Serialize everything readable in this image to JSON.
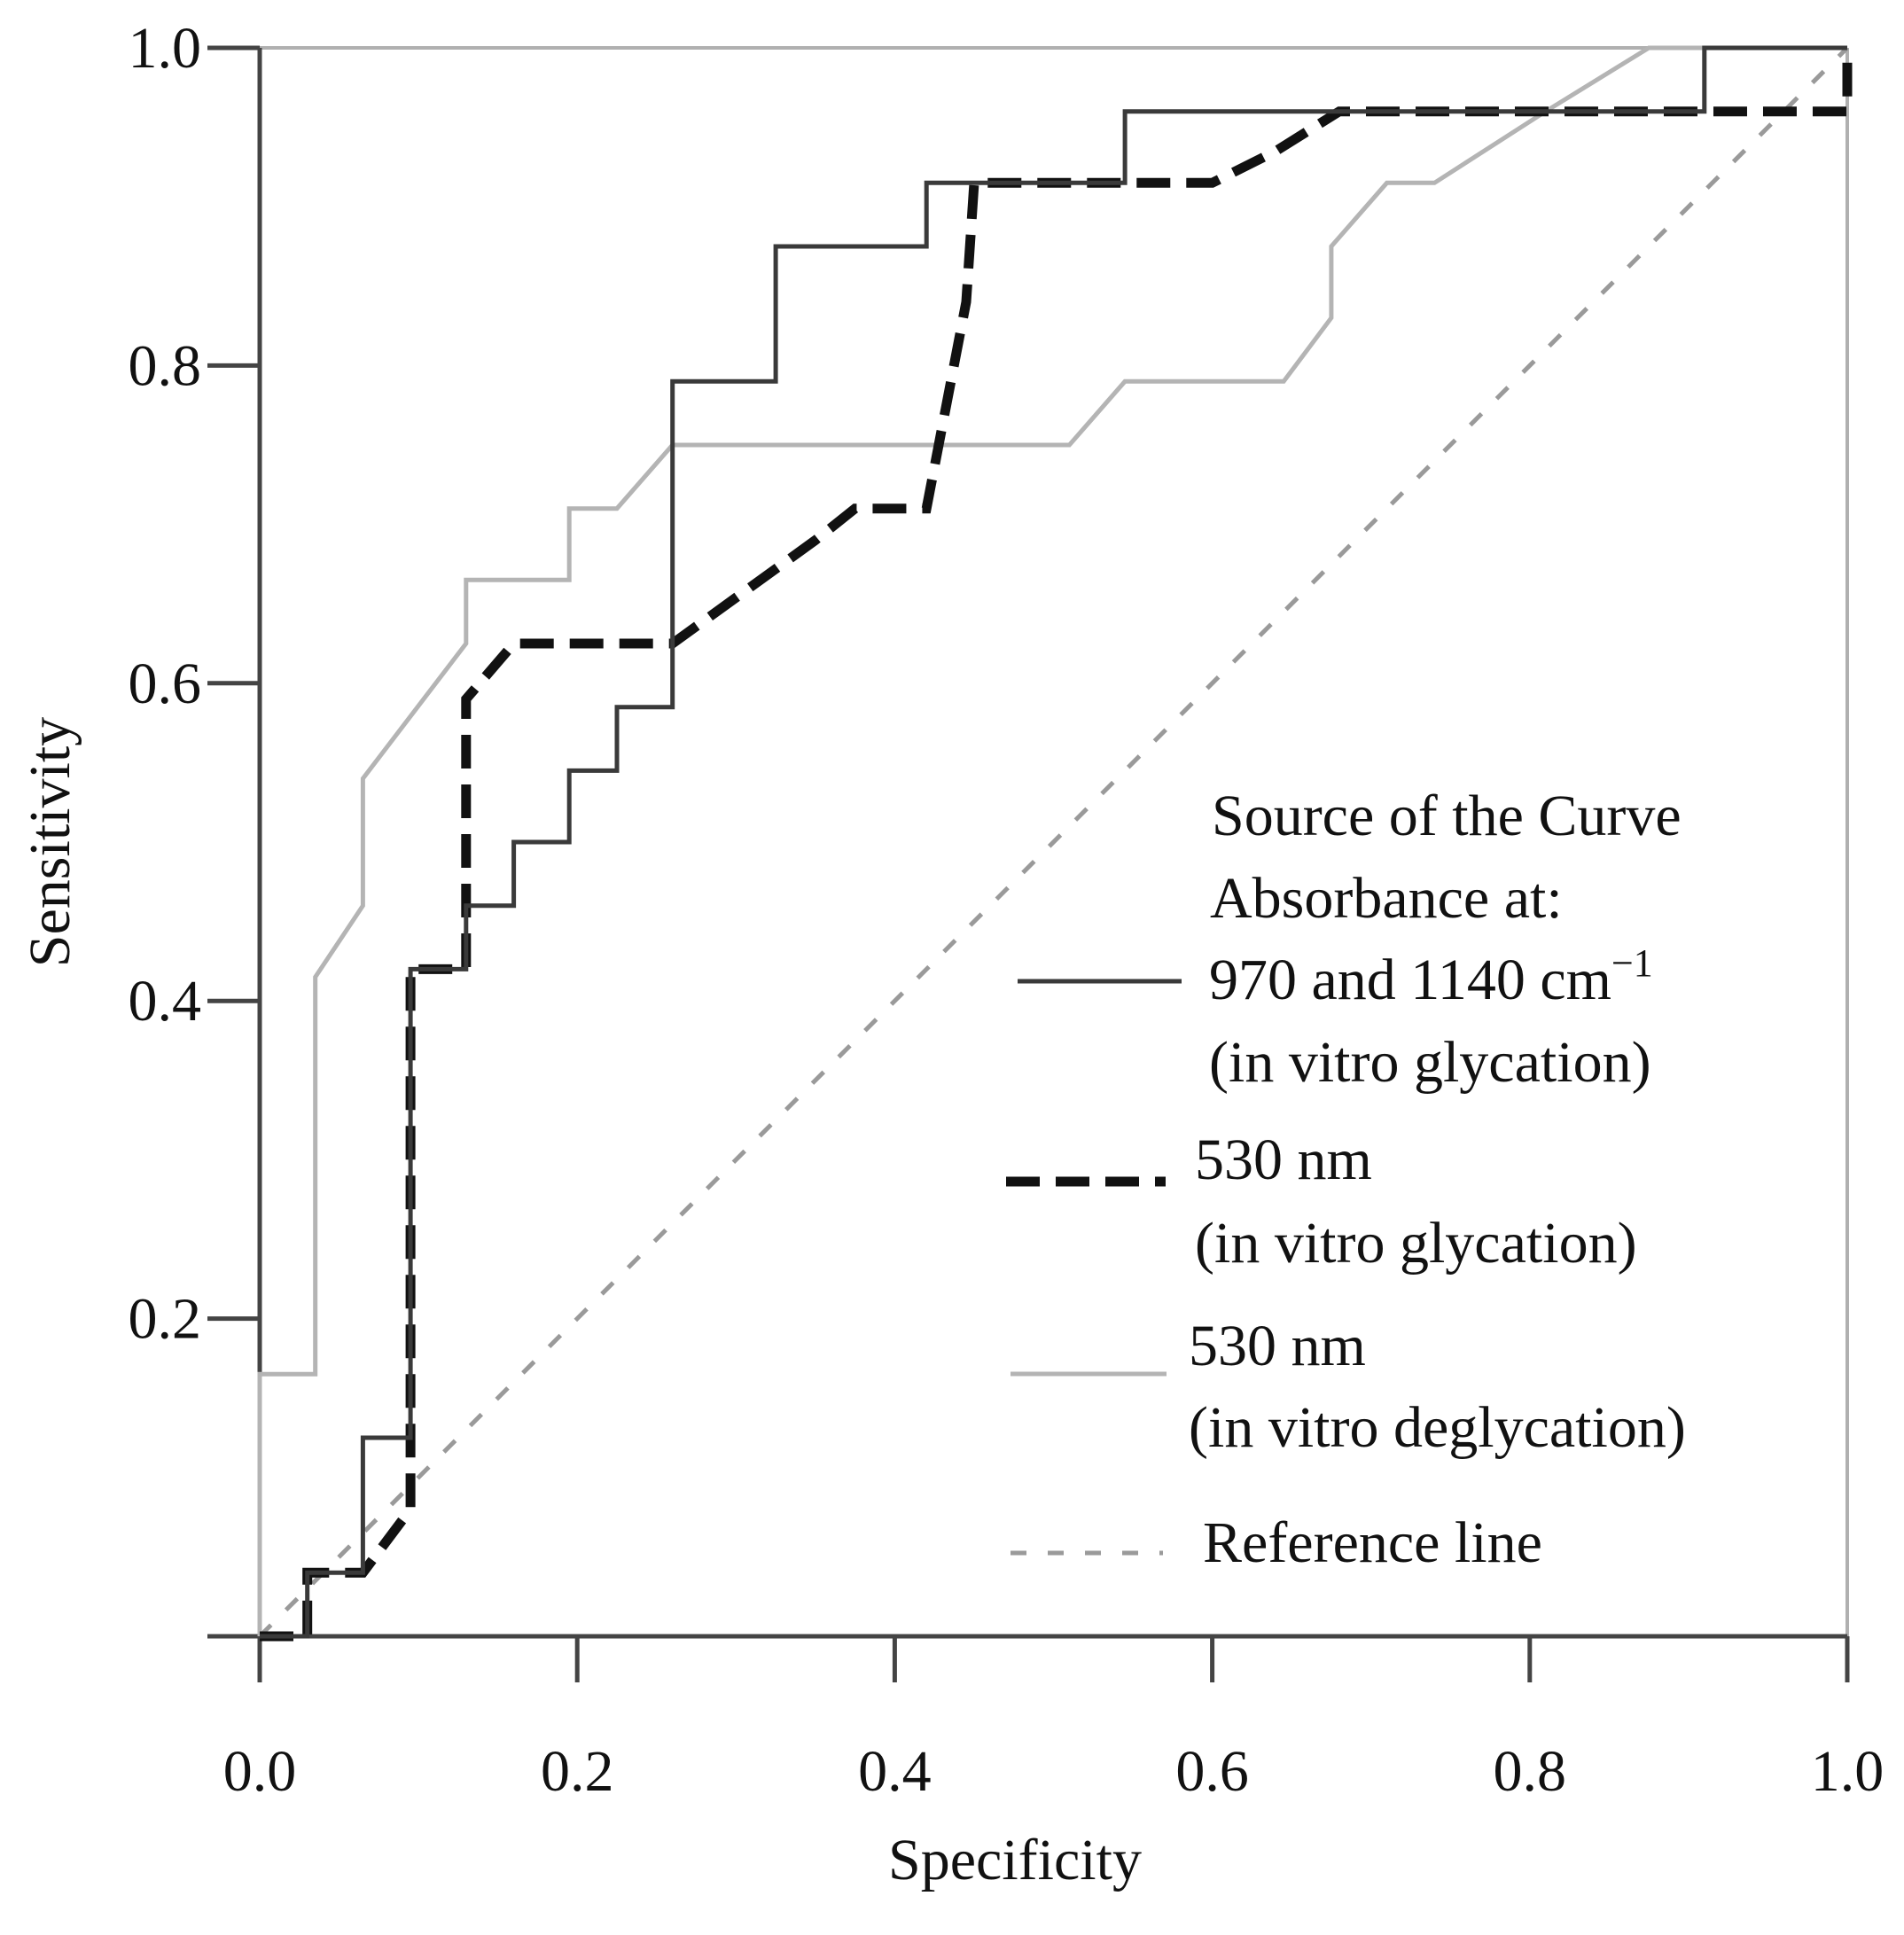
{
  "chart_data": {
    "type": "line",
    "title": "",
    "xlabel": "Specificity",
    "ylabel": "Sensitivity",
    "xlim": [
      0,
      1
    ],
    "ylim": [
      0,
      1
    ],
    "x_ticks": [
      "0.0",
      "0.2",
      "0.4",
      "0.6",
      "0.8",
      "1.0"
    ],
    "y_ticks": [
      "0.2",
      "0.4",
      "0.6",
      "0.8",
      "1.0"
    ],
    "grid": false,
    "legend": {
      "placement": "bottom-right",
      "title_line1": "Source of the Curve",
      "title_line2": "Absorbance at:",
      "entries": [
        {
          "label_pre": "970 and 1140 cm",
          "label_sup": "−1",
          "label_line2": "(in vitro glycation)"
        },
        {
          "label_pre": "530 nm",
          "label_sup": "",
          "label_line2": "(in vitro glycation)"
        },
        {
          "label_pre": "530 nm",
          "label_sup": "",
          "label_line2": "(in vitro deglycation)"
        },
        {
          "label_pre": "Reference line",
          "label_sup": "",
          "label_line2": ""
        }
      ]
    },
    "series": [
      {
        "name": "970 and 1140 cm−1 (in vitro glycation)",
        "style": "solid",
        "color": "#3a3a3a",
        "points": [
          [
            0,
            0
          ],
          [
            0.03,
            0
          ],
          [
            0.03,
            0.04
          ],
          [
            0.065,
            0.04
          ],
          [
            0.065,
            0.125
          ],
          [
            0.095,
            0.125
          ],
          [
            0.095,
            0.42
          ],
          [
            0.13,
            0.42
          ],
          [
            0.13,
            0.46
          ],
          [
            0.16,
            0.46
          ],
          [
            0.16,
            0.5
          ],
          [
            0.195,
            0.5
          ],
          [
            0.195,
            0.545
          ],
          [
            0.225,
            0.545
          ],
          [
            0.225,
            0.585
          ],
          [
            0.26,
            0.585
          ],
          [
            0.26,
            0.79
          ],
          [
            0.325,
            0.79
          ],
          [
            0.325,
            0.875
          ],
          [
            0.42,
            0.875
          ],
          [
            0.42,
            0.915
          ],
          [
            0.545,
            0.915
          ],
          [
            0.545,
            0.96
          ],
          [
            0.91,
            0.96
          ],
          [
            0.91,
            1.0
          ],
          [
            1.0,
            1.0
          ]
        ]
      },
      {
        "name": "530 nm (in vitro glycation)",
        "style": "dashed",
        "color": "#111111",
        "points": [
          [
            0,
            0
          ],
          [
            0.03,
            0
          ],
          [
            0.03,
            0.04
          ],
          [
            0.065,
            0.04
          ],
          [
            0.095,
            0.08
          ],
          [
            0.095,
            0.42
          ],
          [
            0.13,
            0.42
          ],
          [
            0.13,
            0.59
          ],
          [
            0.16,
            0.625
          ],
          [
            0.26,
            0.625
          ],
          [
            0.35,
            0.69
          ],
          [
            0.375,
            0.71
          ],
          [
            0.42,
            0.71
          ],
          [
            0.445,
            0.84
          ],
          [
            0.45,
            0.915
          ],
          [
            0.6,
            0.915
          ],
          [
            0.64,
            0.935
          ],
          [
            0.68,
            0.96
          ],
          [
            1.0,
            0.96
          ],
          [
            1.0,
            1.0
          ]
        ]
      },
      {
        "name": "530 nm (in vitro deglycation)",
        "style": "solid",
        "color": "#b4b4b4",
        "points": [
          [
            0,
            0
          ],
          [
            0,
            0.165
          ],
          [
            0.035,
            0.165
          ],
          [
            0.035,
            0.415
          ],
          [
            0.065,
            0.46
          ],
          [
            0.065,
            0.54
          ],
          [
            0.13,
            0.625
          ],
          [
            0.13,
            0.665
          ],
          [
            0.195,
            0.665
          ],
          [
            0.195,
            0.71
          ],
          [
            0.225,
            0.71
          ],
          [
            0.26,
            0.75
          ],
          [
            0.51,
            0.75
          ],
          [
            0.545,
            0.79
          ],
          [
            0.645,
            0.79
          ],
          [
            0.675,
            0.83
          ],
          [
            0.675,
            0.875
          ],
          [
            0.71,
            0.915
          ],
          [
            0.74,
            0.915
          ],
          [
            0.81,
            0.96
          ],
          [
            0.875,
            1.0
          ],
          [
            1.0,
            1.0
          ]
        ]
      },
      {
        "name": "Reference line",
        "style": "dotted",
        "color": "#9a9a9a",
        "points": [
          [
            0,
            0
          ],
          [
            1.0,
            1.0
          ]
        ]
      }
    ]
  }
}
